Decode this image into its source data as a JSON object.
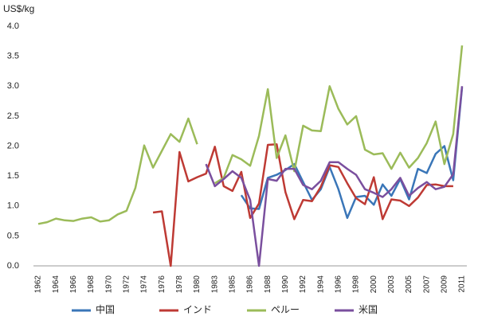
{
  "chart_data": {
    "type": "line",
    "y_label": "US$/kg",
    "categories": [
      "1962",
      null,
      "1964",
      null,
      "1966",
      null,
      "1968",
      null,
      "1970",
      null,
      "1972",
      null,
      "1974",
      null,
      "1976",
      null,
      "1978",
      null,
      "1980",
      null,
      "1983",
      null,
      "1985",
      null,
      "1986",
      null,
      "1988",
      null,
      "1990",
      null,
      "1992",
      null,
      "1994",
      null,
      "1996",
      null,
      "1998",
      null,
      "2000",
      null,
      "2003",
      null,
      "2005",
      null,
      "2007",
      null,
      "2009",
      null,
      "2011"
    ],
    "series": [
      {
        "name": "中国",
        "color": "#3a76b8",
        "values": [
          null,
          null,
          null,
          null,
          null,
          null,
          null,
          null,
          null,
          null,
          null,
          null,
          null,
          null,
          null,
          null,
          null,
          null,
          null,
          null,
          null,
          null,
          null,
          1.18,
          0.96,
          0.95,
          1.47,
          1.52,
          1.6,
          1.7,
          1.4,
          1.1,
          1.28,
          1.65,
          1.28,
          0.8,
          1.15,
          1.17,
          1.02,
          1.36,
          1.17,
          1.45,
          1.11,
          1.62,
          1.55,
          1.87,
          2.0,
          1.43,
          2.98
        ]
      },
      {
        "name": "インド",
        "color": "#be3a34",
        "values": [
          null,
          null,
          null,
          null,
          null,
          null,
          null,
          null,
          null,
          null,
          null,
          null,
          null,
          0.89,
          0.91,
          0.0,
          1.9,
          1.41,
          1.48,
          1.54,
          1.99,
          1.33,
          1.25,
          1.57,
          0.8,
          1.04,
          2.02,
          2.03,
          1.23,
          0.78,
          1.1,
          1.08,
          1.32,
          1.68,
          1.65,
          1.38,
          1.13,
          1.03,
          1.48,
          0.78,
          1.11,
          1.09,
          1.0,
          1.14,
          1.35,
          1.36,
          1.33,
          1.33,
          null
        ]
      },
      {
        "name": "ペルー",
        "color": "#9bbb59",
        "values": [
          0.7,
          0.73,
          0.79,
          0.76,
          0.75,
          0.79,
          0.81,
          0.74,
          0.76,
          0.86,
          0.92,
          1.3,
          2.01,
          1.64,
          1.92,
          2.2,
          2.07,
          2.46,
          2.03,
          null,
          1.38,
          1.47,
          1.85,
          1.78,
          1.67,
          2.17,
          2.95,
          1.8,
          2.18,
          1.58,
          2.34,
          2.26,
          2.25,
          3.0,
          2.62,
          2.36,
          2.5,
          1.94,
          1.86,
          1.88,
          1.62,
          1.89,
          1.64,
          1.8,
          2.05,
          2.41,
          1.7,
          2.2,
          3.68
        ]
      },
      {
        "name": "米国",
        "color": "#7a4f9e",
        "values": [
          null,
          null,
          null,
          null,
          null,
          null,
          null,
          null,
          null,
          null,
          null,
          null,
          null,
          null,
          null,
          null,
          null,
          null,
          null,
          1.7,
          1.33,
          1.45,
          1.58,
          1.47,
          1.1,
          0.0,
          1.45,
          1.42,
          1.62,
          1.62,
          1.35,
          1.28,
          1.42,
          1.73,
          1.73,
          1.62,
          1.52,
          1.28,
          1.22,
          1.15,
          1.28,
          1.47,
          1.17,
          1.3,
          1.4,
          1.28,
          1.32,
          1.53,
          3.0
        ]
      }
    ],
    "ylim": [
      0,
      4
    ],
    "yticks": [
      {
        "value": 0,
        "label": "0.0"
      },
      {
        "value": 0.5,
        "label": "0.5"
      },
      {
        "value": 1,
        "label": "1.0"
      },
      {
        "value": 1.5,
        "label": "1.5"
      },
      {
        "value": 2,
        "label": "2.0"
      },
      {
        "value": 2.5,
        "label": "2.5"
      },
      {
        "value": 3,
        "label": "3.0"
      },
      {
        "value": 3.5,
        "label": "3.5"
      },
      {
        "value": 4,
        "label": "4.0"
      }
    ],
    "grid": false,
    "legend": "bottom"
  }
}
